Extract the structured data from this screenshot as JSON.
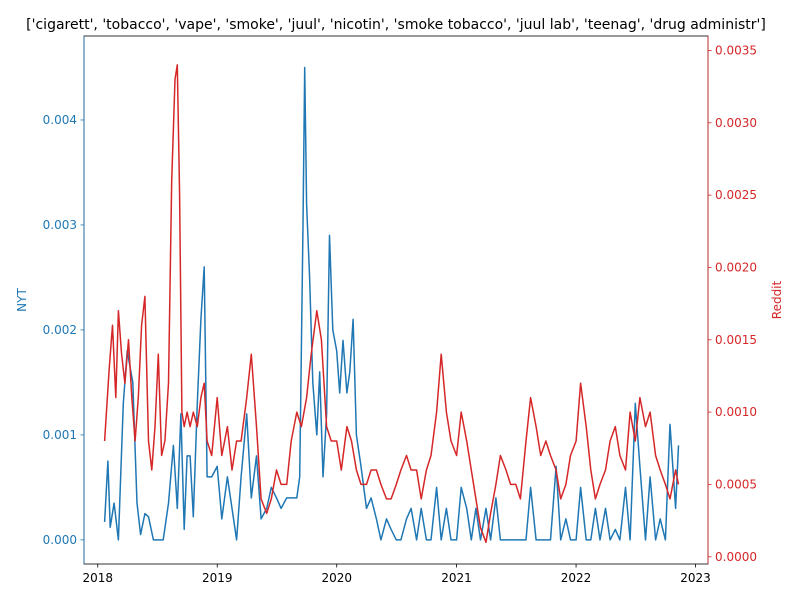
{
  "chart_data": {
    "type": "line",
    "title": "['cigarett', 'tobacco', 'vape', 'smoke', 'juul', 'nicotin', 'smoke tobacco', 'juul lab', 'teenag', 'drug administr']",
    "xlabel": "",
    "grid": false,
    "legend": "none",
    "x_ticks": [
      "2018",
      "2019",
      "2020",
      "2021",
      "2022",
      "2023"
    ],
    "xlim": [
      "2017-11-20",
      "2023-02-08"
    ],
    "left_axis": {
      "label": "NYT",
      "color": "#1f77b4",
      "ylim": [
        -0.00023,
        0.0048
      ],
      "ticks": [
        "0.000",
        "0.001",
        "0.002",
        "0.003",
        "0.004"
      ]
    },
    "right_axis": {
      "label": "Reddit",
      "color": "#d62728",
      "ylim": [
        -5e-05,
        0.0036
      ],
      "ticks": [
        "0.0000",
        "0.0005",
        "0.0010",
        "0.0015",
        "0.0020",
        "0.0025",
        "0.0030",
        "0.0035"
      ]
    },
    "series": [
      {
        "name": "NYT",
        "axis": "left",
        "color": "#1f77b4",
        "x": [
          "2018-01-22",
          "2018-02-01",
          "2018-02-08",
          "2018-02-20",
          "2018-03-05",
          "2018-03-20",
          "2018-04-01",
          "2018-04-18",
          "2018-05-01",
          "2018-05-12",
          "2018-05-25",
          "2018-06-05",
          "2018-06-20",
          "2018-07-05",
          "2018-07-20",
          "2018-08-05",
          "2018-08-20",
          "2018-09-01",
          "2018-09-12",
          "2018-09-22",
          "2018-10-01",
          "2018-10-10",
          "2018-10-20",
          "2018-11-01",
          "2018-11-12",
          "2018-11-22",
          "2018-12-01",
          "2018-12-15",
          "2019-01-01",
          "2019-01-15",
          "2019-02-01",
          "2019-02-15",
          "2019-03-01",
          "2019-03-15",
          "2019-04-01",
          "2019-04-15",
          "2019-05-01",
          "2019-05-15",
          "2019-06-01",
          "2019-06-15",
          "2019-07-01",
          "2019-07-15",
          "2019-08-01",
          "2019-08-15",
          "2019-09-01",
          "2019-09-10",
          "2019-09-20",
          "2019-09-25",
          "2019-10-01",
          "2019-10-10",
          "2019-10-20",
          "2019-11-01",
          "2019-11-10",
          "2019-11-20",
          "2019-12-01",
          "2019-12-10",
          "2019-12-20",
          "2020-01-01",
          "2020-01-10",
          "2020-01-20",
          "2020-02-01",
          "2020-02-10",
          "2020-02-20",
          "2020-03-01",
          "2020-03-15",
          "2020-04-01",
          "2020-04-15",
          "2020-05-01",
          "2020-05-15",
          "2020-06-01",
          "2020-06-15",
          "2020-07-01",
          "2020-07-15",
          "2020-08-01",
          "2020-08-15",
          "2020-09-01",
          "2020-09-15",
          "2020-10-01",
          "2020-10-15",
          "2020-11-01",
          "2020-11-15",
          "2020-12-01",
          "2020-12-15",
          "2021-01-01",
          "2021-01-15",
          "2021-02-01",
          "2021-02-15",
          "2021-03-01",
          "2021-03-15",
          "2021-04-01",
          "2021-04-15",
          "2021-05-01",
          "2021-05-15",
          "2021-06-01",
          "2021-06-15",
          "2021-07-01",
          "2021-07-15",
          "2021-08-01",
          "2021-08-15",
          "2021-09-01",
          "2021-09-15",
          "2021-10-01",
          "2021-10-15",
          "2021-11-01",
          "2021-11-15",
          "2021-12-01",
          "2021-12-15",
          "2022-01-01",
          "2022-01-15",
          "2022-02-01",
          "2022-02-15",
          "2022-03-01",
          "2022-03-15",
          "2022-04-01",
          "2022-04-15",
          "2022-05-01",
          "2022-05-15",
          "2022-06-01",
          "2022-06-15",
          "2022-07-01",
          "2022-07-15",
          "2022-08-01",
          "2022-08-15",
          "2022-09-01",
          "2022-09-15",
          "2022-10-01",
          "2022-10-15",
          "2022-11-01",
          "2022-11-10"
        ],
        "values": [
          0.00017,
          0.00075,
          0.00012,
          0.00035,
          0.0,
          0.0013,
          0.0018,
          0.0015,
          0.00035,
          5e-05,
          0.00025,
          0.00022,
          0.0,
          0.0,
          0.0,
          0.00035,
          0.0009,
          0.0003,
          0.0012,
          0.0001,
          0.0008,
          0.0008,
          0.00022,
          0.0013,
          0.0021,
          0.0026,
          0.0006,
          0.0006,
          0.0007,
          0.0002,
          0.0006,
          0.0003,
          0.0,
          0.0006,
          0.0012,
          0.0004,
          0.0008,
          0.0002,
          0.0003,
          0.0005,
          0.0004,
          0.0003,
          0.0004,
          0.0004,
          0.0004,
          0.0006,
          0.003,
          0.0045,
          0.0032,
          0.0025,
          0.0015,
          0.001,
          0.0016,
          0.0006,
          0.0012,
          0.0029,
          0.002,
          0.0018,
          0.0014,
          0.0019,
          0.0014,
          0.0016,
          0.0021,
          0.001,
          0.0007,
          0.0003,
          0.0004,
          0.0002,
          0.0,
          0.0002,
          0.0001,
          0.0,
          0.0,
          0.0002,
          0.0003,
          0.0,
          0.0003,
          0.0,
          0.0,
          0.0005,
          0.0,
          0.0003,
          0.0,
          0.0,
          0.0005,
          0.0003,
          0.0,
          0.0003,
          0.0,
          0.0003,
          0.0,
          0.0004,
          0.0,
          0.0,
          0.0,
          0.0,
          0.0,
          0.0,
          0.0005,
          0.0,
          0.0,
          0.0,
          0.0,
          0.0007,
          0.0,
          0.0002,
          0.0,
          0.0,
          0.0005,
          0.0,
          0.0,
          0.0003,
          0.0,
          0.0003,
          0.0,
          0.0001,
          0.0,
          0.0005,
          0.0,
          0.0013,
          0.0007,
          0.0,
          0.0006,
          0.0,
          0.0002,
          0.0,
          0.0011,
          0.0003,
          0.0009
        ]
      },
      {
        "name": "Reddit",
        "axis": "right",
        "color": "#d62728",
        "x": [
          "2018-01-22",
          "2018-02-05",
          "2018-02-15",
          "2018-02-25",
          "2018-03-05",
          "2018-03-15",
          "2018-03-25",
          "2018-04-05",
          "2018-04-15",
          "2018-04-25",
          "2018-05-05",
          "2018-05-15",
          "2018-05-25",
          "2018-06-05",
          "2018-06-15",
          "2018-06-25",
          "2018-07-05",
          "2018-07-15",
          "2018-07-25",
          "2018-08-05",
          "2018-08-15",
          "2018-08-25",
          "2018-09-01",
          "2018-09-08",
          "2018-09-15",
          "2018-09-22",
          "2018-10-01",
          "2018-10-10",
          "2018-10-20",
          "2018-11-01",
          "2018-11-12",
          "2018-11-22",
          "2018-12-01",
          "2018-12-15",
          "2019-01-01",
          "2019-01-15",
          "2019-02-01",
          "2019-02-15",
          "2019-03-01",
          "2019-03-15",
          "2019-04-01",
          "2019-04-15",
          "2019-05-01",
          "2019-05-15",
          "2019-06-01",
          "2019-06-15",
          "2019-07-01",
          "2019-07-15",
          "2019-08-01",
          "2019-08-15",
          "2019-09-01",
          "2019-09-15",
          "2019-10-01",
          "2019-10-15",
          "2019-11-01",
          "2019-11-15",
          "2019-12-01",
          "2019-12-15",
          "2020-01-01",
          "2020-01-15",
          "2020-02-01",
          "2020-02-15",
          "2020-03-01",
          "2020-03-15",
          "2020-04-01",
          "2020-04-15",
          "2020-05-01",
          "2020-05-15",
          "2020-06-01",
          "2020-06-15",
          "2020-07-01",
          "2020-07-15",
          "2020-08-01",
          "2020-08-15",
          "2020-09-01",
          "2020-09-15",
          "2020-10-01",
          "2020-10-15",
          "2020-11-01",
          "2020-11-15",
          "2020-12-01",
          "2020-12-15",
          "2021-01-01",
          "2021-01-15",
          "2021-02-01",
          "2021-02-15",
          "2021-03-01",
          "2021-03-15",
          "2021-04-01",
          "2021-04-15",
          "2021-05-01",
          "2021-05-15",
          "2021-06-01",
          "2021-06-15",
          "2021-07-01",
          "2021-07-15",
          "2021-08-01",
          "2021-08-15",
          "2021-09-01",
          "2021-09-15",
          "2021-10-01",
          "2021-10-15",
          "2021-11-01",
          "2021-11-15",
          "2021-12-01",
          "2021-12-15",
          "2022-01-01",
          "2022-01-15",
          "2022-02-01",
          "2022-02-15",
          "2022-03-01",
          "2022-03-15",
          "2022-04-01",
          "2022-04-15",
          "2022-05-01",
          "2022-05-15",
          "2022-06-01",
          "2022-06-15",
          "2022-07-01",
          "2022-07-15",
          "2022-08-01",
          "2022-08-15",
          "2022-09-01",
          "2022-09-15",
          "2022-10-01",
          "2022-10-15",
          "2022-11-01",
          "2022-11-10"
        ],
        "values": [
          0.0008,
          0.0013,
          0.0016,
          0.0011,
          0.0017,
          0.0014,
          0.0012,
          0.0015,
          0.0011,
          0.0008,
          0.0011,
          0.0016,
          0.0018,
          0.0008,
          0.0006,
          0.0009,
          0.0014,
          0.0007,
          0.0008,
          0.0012,
          0.0026,
          0.0033,
          0.0034,
          0.0025,
          0.001,
          0.0009,
          0.001,
          0.0009,
          0.001,
          0.0009,
          0.0011,
          0.0012,
          0.0008,
          0.0007,
          0.0011,
          0.0007,
          0.0009,
          0.0006,
          0.0008,
          0.0008,
          0.0011,
          0.0014,
          0.0009,
          0.0004,
          0.0003,
          0.0004,
          0.0006,
          0.0005,
          0.0005,
          0.0008,
          0.001,
          0.0009,
          0.0011,
          0.0014,
          0.0017,
          0.0015,
          0.0009,
          0.0008,
          0.0008,
          0.0006,
          0.0009,
          0.0008,
          0.0006,
          0.0005,
          0.0005,
          0.0006,
          0.0006,
          0.0005,
          0.0004,
          0.0004,
          0.0005,
          0.0006,
          0.0007,
          0.0006,
          0.0006,
          0.0004,
          0.0006,
          0.0007,
          0.001,
          0.0014,
          0.001,
          0.0008,
          0.0007,
          0.001,
          0.0008,
          0.0006,
          0.0004,
          0.0002,
          0.0001,
          0.0003,
          0.0005,
          0.0007,
          0.0006,
          0.0005,
          0.0005,
          0.0004,
          0.0008,
          0.0011,
          0.0009,
          0.0007,
          0.0008,
          0.0007,
          0.0006,
          0.0004,
          0.0005,
          0.0007,
          0.0008,
          0.0012,
          0.0009,
          0.0006,
          0.0004,
          0.0005,
          0.0006,
          0.0008,
          0.0009,
          0.0007,
          0.0006,
          0.001,
          0.0008,
          0.0011,
          0.0009,
          0.001,
          0.0007,
          0.0006,
          0.0005,
          0.0004,
          0.0006,
          0.0005
        ]
      }
    ]
  }
}
